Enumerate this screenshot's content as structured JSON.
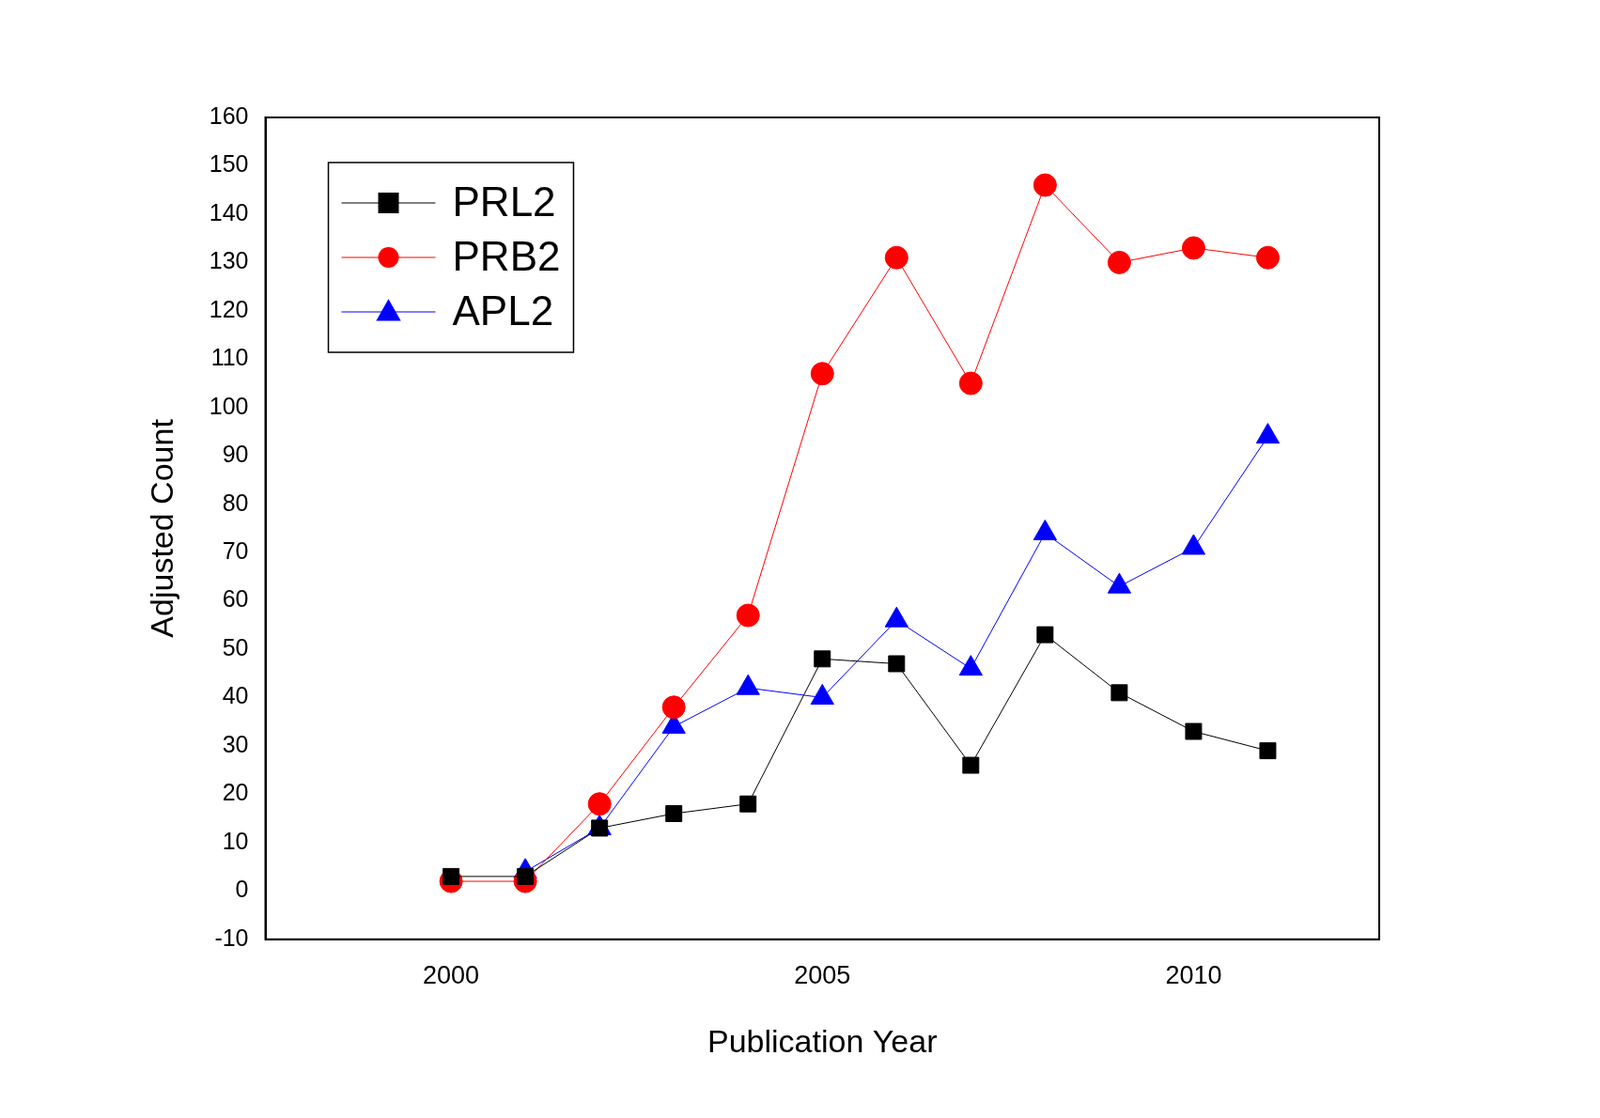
{
  "chart_data": {
    "type": "line",
    "x_label": "Publication Year",
    "y_label": "Adjusted Count",
    "x": [
      2000,
      2001,
      2002,
      2003,
      2004,
      2005,
      2006,
      2007,
      2008,
      2009,
      2010,
      2011
    ],
    "series": [
      {
        "name": "PRL2",
        "color": "#000000",
        "marker": "square",
        "values": [
          3,
          3,
          13,
          16,
          18,
          48,
          47,
          26,
          53,
          41,
          33,
          29
        ]
      },
      {
        "name": "PRB2",
        "color": "#ff0000",
        "marker": "circle",
        "values": [
          2,
          2,
          18,
          38,
          57,
          107,
          131,
          105,
          146,
          130,
          133,
          131
        ]
      },
      {
        "name": "APL2",
        "color": "#0000ff",
        "marker": "triangle",
        "values": [
          null,
          4,
          13,
          34,
          42,
          40,
          56,
          46,
          74,
          63,
          71,
          94
        ]
      }
    ],
    "xlim": [
      1997.5,
      2012.5
    ],
    "xticks": [
      2000,
      2005,
      2010
    ],
    "ylim": [
      -10,
      160
    ],
    "yticks": [
      -10,
      0,
      10,
      20,
      30,
      40,
      50,
      60,
      70,
      80,
      90,
      100,
      110,
      120,
      130,
      140,
      150,
      160
    ],
    "grid": false,
    "legend": "upper left"
  }
}
